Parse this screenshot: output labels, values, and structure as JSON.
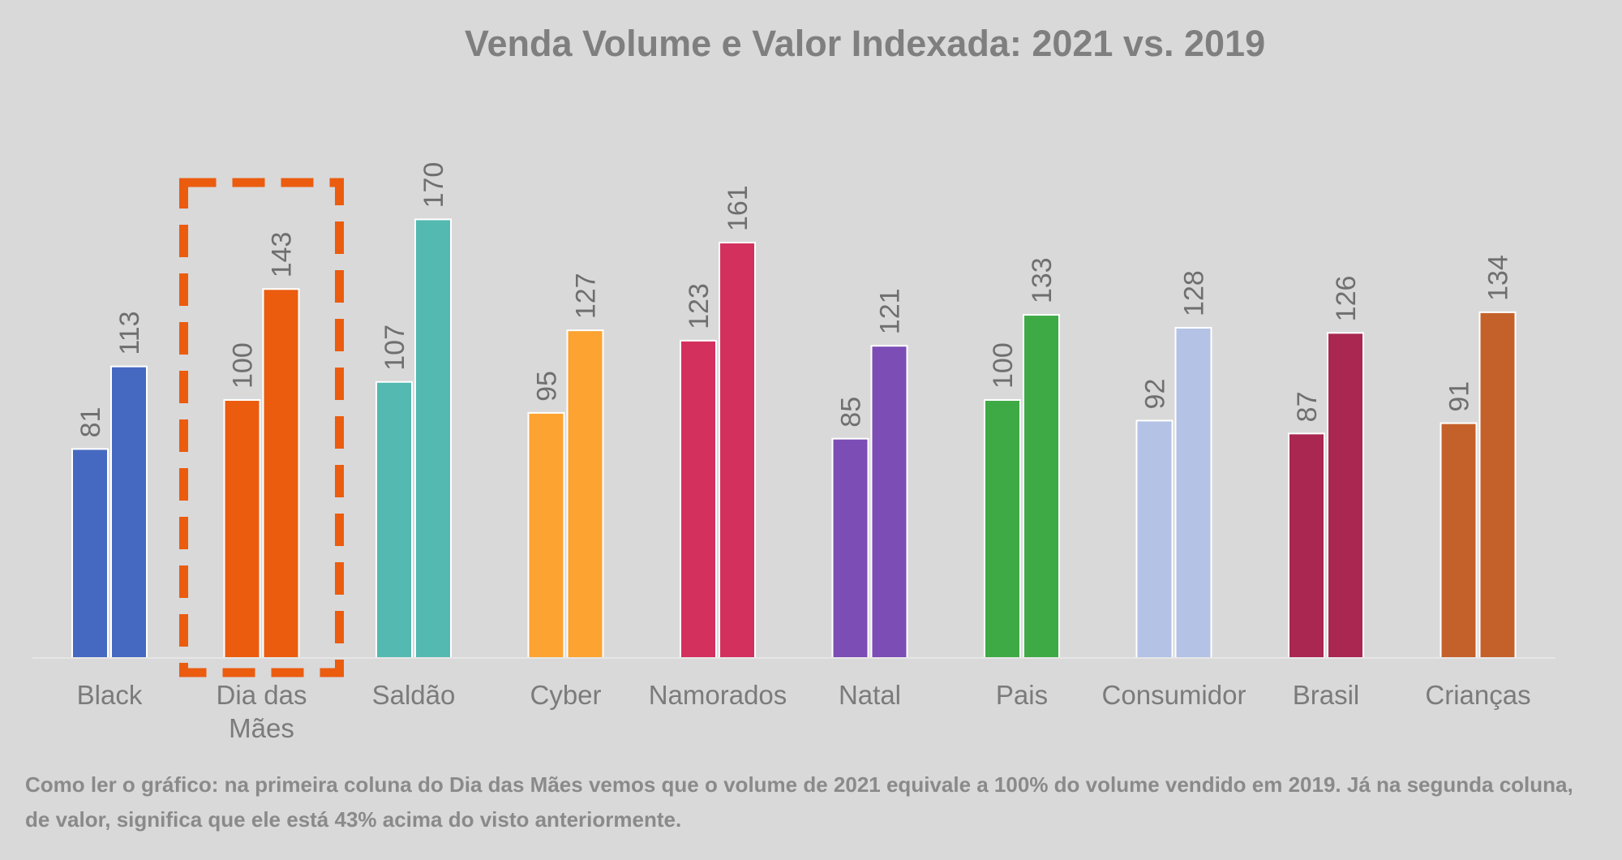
{
  "chart_data": {
    "type": "bar",
    "title": "Venda Volume e Valor Indexada: 2021 vs. 2019",
    "categories": [
      [
        "Black"
      ],
      [
        "Dia das",
        "Mães"
      ],
      [
        "Saldão"
      ],
      [
        "Cyber"
      ],
      [
        "Namorados"
      ],
      [
        "Natal"
      ],
      [
        "Pais"
      ],
      [
        "Consumidor"
      ],
      [
        "Brasil"
      ],
      [
        "Crianças"
      ]
    ],
    "series": [
      {
        "values": [
          81,
          100,
          107,
          95,
          123,
          85,
          100,
          92,
          87,
          91
        ]
      },
      {
        "values": [
          113,
          143,
          170,
          127,
          161,
          121,
          133,
          128,
          126,
          134
        ]
      }
    ],
    "category_colors": [
      "#4569c1",
      "#eb5c0f",
      "#53b9b1",
      "#fca331",
      "#d3305e",
      "#7c4db5",
      "#3eaa45",
      "#b3c2e5",
      "#a92751",
      "#c4612a"
    ],
    "highlight": {
      "category_index": 1,
      "style": "dashed-box",
      "color": "#eb5c0f"
    },
    "ylim": [
      0,
      200
    ],
    "xlabel": "",
    "ylabel": "",
    "grid": false,
    "legend": "none",
    "data_labels": true
  },
  "note": "Como ler o gráfico: na primeira coluna do Dia das Mães vemos que o volume de 2021 equivale a 100% do volume vendido em 2019. Já na segunda coluna, de valor, significa que ele está 43% acima do visto anteriormente."
}
